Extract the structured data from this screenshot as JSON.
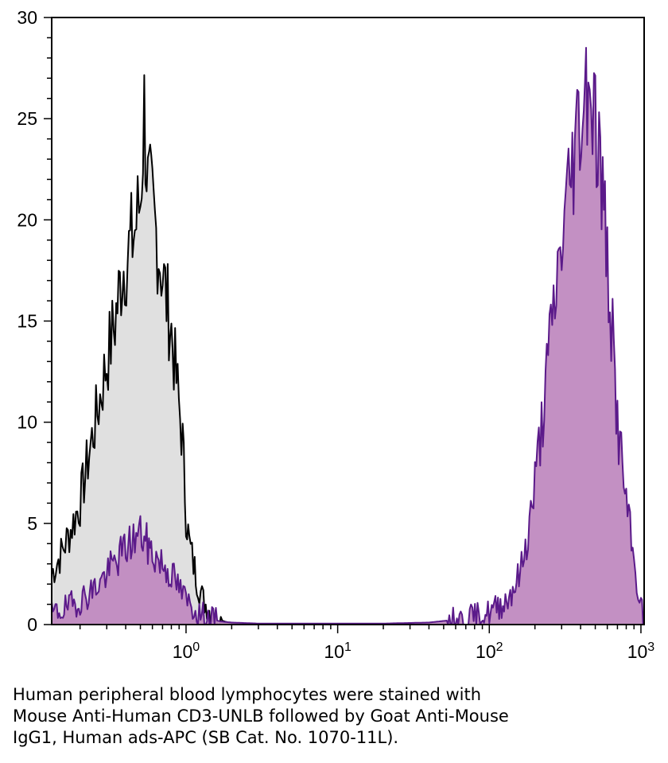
{
  "chart_data": {
    "type": "area",
    "x_scale": "log",
    "xlim": [
      0.13,
      1050
    ],
    "ylim": [
      0,
      30
    ],
    "grid": false,
    "legend": "none",
    "x_ticks": [
      {
        "value": 1,
        "base": "10",
        "exp": "0"
      },
      {
        "value": 10,
        "base": "10",
        "exp": "1"
      },
      {
        "value": 100,
        "base": "10",
        "exp": "2"
      },
      {
        "value": 1000,
        "base": "10",
        "exp": "3"
      }
    ],
    "y_ticks": [
      "0",
      "5",
      "10",
      "15",
      "20",
      "25",
      "30"
    ],
    "colors": {
      "control_fill": "#e0e0e0",
      "control_line": "#000000",
      "stained_fill": "#c08ac0",
      "stained_line": "#5b1a8a"
    },
    "series": [
      {
        "x": [
          0.13,
          0.15,
          0.17,
          0.2,
          0.23,
          0.26,
          0.3,
          0.34,
          0.38,
          0.42,
          0.46,
          0.5,
          0.53,
          0.56,
          0.6,
          0.66,
          0.73,
          0.8,
          0.88,
          0.95,
          1.0,
          1.05,
          1.12,
          1.2,
          1.3,
          1.45,
          1.6,
          1.8,
          2.0,
          2.2
        ],
        "y": [
          2.5,
          3.5,
          4.5,
          6.0,
          8.5,
          10.5,
          13.0,
          15.0,
          17.5,
          18.5,
          19.5,
          21.0,
          25.5,
          21.5,
          20.5,
          18.5,
          16.5,
          14.5,
          11.5,
          9.0,
          5.5,
          4.0,
          3.0,
          2.0,
          1.2,
          0.6,
          0.3,
          0.15,
          0.05,
          0
        ]
      },
      {
        "x": [
          0.13,
          0.16,
          0.2,
          0.25,
          0.3,
          0.35,
          0.4,
          0.45,
          0.5,
          0.55,
          0.6,
          0.7,
          0.8,
          0.9,
          1.0,
          1.2,
          1.4,
          1.7,
          2.0,
          3.0,
          5.0,
          10.0,
          20.0,
          40.0,
          70.0,
          100.0,
          130.0,
          160.0,
          180.0,
          200.0,
          230.0,
          260.0,
          300.0,
          340.0,
          380.0,
          420.0,
          450.0,
          470.0,
          500.0,
          550.0,
          600.0,
          650.0,
          700.0,
          800.0,
          900.0,
          1000.0,
          1050.0
        ],
        "y": [
          0.5,
          0.8,
          1.2,
          1.8,
          2.5,
          3.2,
          3.8,
          4.2,
          4.5,
          4.0,
          3.5,
          3.0,
          2.5,
          1.8,
          1.2,
          0.6,
          0.3,
          0.15,
          0.1,
          0.05,
          0.05,
          0.05,
          0.05,
          0.1,
          0.3,
          0.6,
          1.2,
          2.5,
          4.5,
          7.0,
          11.0,
          15.0,
          19.0,
          22.0,
          24.5,
          26.0,
          27.5,
          26.5,
          25.0,
          22.0,
          18.0,
          14.0,
          10.0,
          6.0,
          3.0,
          1.0,
          0
        ]
      }
    ]
  },
  "caption": {
    "lines": [
      "Human peripheral blood lymphocytes were stained with",
      "Mouse Anti-Human CD3-UNLB followed by Goat Anti-Mouse",
      "IgG1, Human ads-APC (SB Cat. No. 1070-11L)."
    ]
  }
}
